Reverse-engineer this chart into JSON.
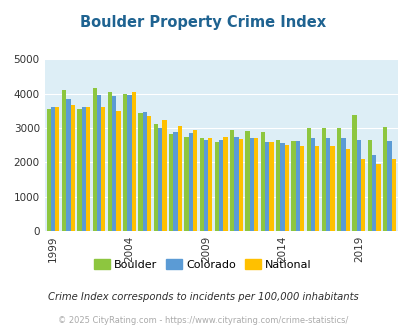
{
  "title": "Boulder Property Crime Index",
  "subtitle": "Crime Index corresponds to incidents per 100,000 inhabitants",
  "footer": "© 2025 CityRating.com - https://www.cityrating.com/crime-statistics/",
  "years": [
    1999,
    2000,
    2001,
    2002,
    2003,
    2004,
    2005,
    2006,
    2007,
    2008,
    2009,
    2010,
    2011,
    2012,
    2013,
    2014,
    2015,
    2016,
    2017,
    2018,
    2019,
    2020,
    2021
  ],
  "boulder": [
    3550,
    4100,
    3550,
    4170,
    4060,
    3990,
    3430,
    3120,
    2820,
    2750,
    2720,
    2600,
    2950,
    2900,
    2880,
    2650,
    2620,
    2990,
    2990,
    3000,
    3370,
    2650,
    3040
  ],
  "colorado": [
    3600,
    3860,
    3600,
    3960,
    3930,
    3970,
    3460,
    3010,
    2880,
    2870,
    2640,
    2660,
    2730,
    2720,
    2590,
    2560,
    2610,
    2700,
    2720,
    2720,
    2640,
    2200,
    2620
  ],
  "national": [
    3600,
    3660,
    3620,
    3620,
    3510,
    4040,
    3350,
    3220,
    3050,
    2940,
    2700,
    2730,
    2670,
    2700,
    2580,
    2510,
    2480,
    2470,
    2470,
    2380,
    2100,
    1960,
    2100
  ],
  "boulder_color": "#8dc63f",
  "colorado_color": "#5b9bd5",
  "national_color": "#ffc000",
  "bg_color": "#ddeef6",
  "ylim": [
    0,
    5000
  ],
  "yticks": [
    0,
    1000,
    2000,
    3000,
    4000,
    5000
  ],
  "xtick_years": [
    1999,
    2004,
    2009,
    2014,
    2019
  ],
  "title_color": "#1f6391",
  "subtitle_color": "#2e2e2e",
  "footer_color": "#aaaaaa",
  "grid_color": "#ffffff",
  "bar_width": 0.28
}
